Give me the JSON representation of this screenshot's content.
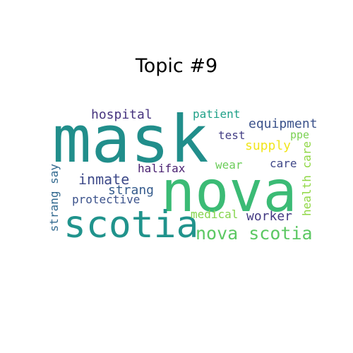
{
  "title": "Topic #9",
  "words": {
    "mask": "mask",
    "nova": "nova",
    "scotia": "scotia",
    "nova_scotia": "nova scotia",
    "hospital": "hospital",
    "patient": "patient",
    "equipment": "equipment",
    "test": "test",
    "ppe": "ppe",
    "supply": "supply",
    "inmate": "inmate",
    "halifax": "halifax",
    "wear": "wear",
    "care": "care",
    "strang": "strang",
    "protective": "protective",
    "medical": "medical",
    "worker": "worker",
    "strang_say": "strang say",
    "health_care": "health care"
  },
  "colors": {
    "mask": "#218e8b",
    "nova": "#3bbb75",
    "scotia": "#20938c",
    "nova_scotia": "#5cc863",
    "hospital": "#46337e",
    "patient": "#1fa188",
    "equipment": "#3b528b",
    "test": "#433e85",
    "ppe": "#7ad151",
    "supply": "#f1e51d",
    "inmate": "#3e4a89",
    "halifax": "#481f70",
    "wear": "#6ccd5a",
    "care": "#3f4788",
    "strang": "#365c8d",
    "protective": "#3b528b",
    "medical": "#84d44b",
    "worker": "#443a83",
    "strang_say": "#31688e",
    "health_care": "#8fd744"
  }
}
